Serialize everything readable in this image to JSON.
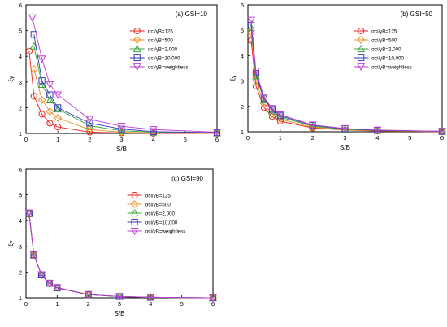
{
  "chart_data": [
    {
      "type": "line",
      "panel_label": "(a) GSI=10",
      "xlabel": "S/B",
      "ylabel": "ξγ",
      "xlim": [
        0,
        6
      ],
      "ylim": [
        1,
        6
      ],
      "xticks": [
        0,
        1,
        2,
        3,
        4,
        5,
        6
      ],
      "yticks": [
        1,
        2,
        3,
        4,
        5,
        6
      ],
      "legend_position": "top-right",
      "series": [
        {
          "name": "σci/γB=125",
          "color": "#e8231c",
          "marker": "circle",
          "points": [
            [
              0.1,
              4.2
            ],
            [
              0.25,
              2.45
            ],
            [
              0.5,
              1.75
            ],
            [
              0.75,
              1.4
            ],
            [
              1,
              1.25
            ],
            [
              2,
              1.05
            ],
            [
              3,
              1.02
            ],
            [
              4,
              1.0
            ],
            [
              6,
              1.0
            ]
          ]
        },
        {
          "name": "σci/γB=500",
          "color": "#f0902a",
          "marker": "diamond",
          "points": [
            [
              0.25,
              3.5
            ],
            [
              0.5,
              2.3
            ],
            [
              0.75,
              1.85
            ],
            [
              1,
              1.6
            ],
            [
              2,
              1.15
            ],
            [
              3,
              1.05
            ],
            [
              4,
              1.02
            ],
            [
              6,
              1.0
            ]
          ]
        },
        {
          "name": "σci/γB=2,000",
          "color": "#3aa63a",
          "marker": "triangle",
          "points": [
            [
              0.25,
              4.4
            ],
            [
              0.5,
              2.9
            ],
            [
              0.75,
              2.3
            ],
            [
              1,
              1.95
            ],
            [
              2,
              1.3
            ],
            [
              3,
              1.1
            ],
            [
              4,
              1.05
            ],
            [
              6,
              1.02
            ]
          ]
        },
        {
          "name": "σci/γB=10,000",
          "color": "#3a3ab8",
          "marker": "square",
          "points": [
            [
              0.25,
              4.85
            ],
            [
              0.5,
              3.05
            ],
            [
              0.75,
              2.5
            ],
            [
              1,
              2.0
            ],
            [
              2,
              1.4
            ],
            [
              3,
              1.17
            ],
            [
              4,
              1.07
            ],
            [
              6,
              1.03
            ]
          ]
        },
        {
          "name": "σci/γB=weightless",
          "color": "#c040d0",
          "marker": "triangle-down",
          "points": [
            [
              0.2,
              5.5
            ],
            [
              0.5,
              3.9
            ],
            [
              0.75,
              2.9
            ],
            [
              1,
              2.5
            ],
            [
              2,
              1.55
            ],
            [
              3,
              1.28
            ],
            [
              4,
              1.15
            ],
            [
              6,
              1.05
            ]
          ]
        }
      ]
    },
    {
      "type": "line",
      "panel_label": "(b) GSI=50",
      "xlabel": "S/B",
      "ylabel": "ξγ",
      "xlim": [
        0,
        6
      ],
      "ylim": [
        1,
        6
      ],
      "xticks": [
        0,
        1,
        2,
        3,
        4,
        5,
        6
      ],
      "yticks": [
        1,
        2,
        3,
        4,
        5,
        6
      ],
      "legend_position": "top-right",
      "series": [
        {
          "name": "σci/γB=125",
          "color": "#e8231c",
          "marker": "circle",
          "points": [
            [
              0.1,
              4.6
            ],
            [
              0.25,
              2.8
            ],
            [
              0.5,
              1.95
            ],
            [
              0.75,
              1.6
            ],
            [
              1,
              1.42
            ],
            [
              2,
              1.15
            ],
            [
              3,
              1.07
            ],
            [
              4,
              1.03
            ],
            [
              6,
              1.0
            ]
          ]
        },
        {
          "name": "σci/γB=500",
          "color": "#f0902a",
          "marker": "diamond",
          "points": [
            [
              0.1,
              4.9
            ],
            [
              0.25,
              3.0
            ],
            [
              0.5,
              2.1
            ],
            [
              0.75,
              1.7
            ],
            [
              1,
              1.5
            ],
            [
              2,
              1.18
            ],
            [
              3,
              1.08
            ],
            [
              4,
              1.04
            ],
            [
              6,
              1.01
            ]
          ]
        },
        {
          "name": "σci/γB=2,000",
          "color": "#3aa63a",
          "marker": "triangle",
          "points": [
            [
              0.1,
              5.1
            ],
            [
              0.25,
              3.2
            ],
            [
              0.5,
              2.25
            ],
            [
              0.75,
              1.82
            ],
            [
              1,
              1.58
            ],
            [
              2,
              1.22
            ],
            [
              3,
              1.1
            ],
            [
              4,
              1.05
            ],
            [
              6,
              1.01
            ]
          ]
        },
        {
          "name": "σci/γB=10,000",
          "color": "#3a3ab8",
          "marker": "square",
          "points": [
            [
              0.1,
              5.2
            ],
            [
              0.25,
              3.3
            ],
            [
              0.5,
              2.3
            ],
            [
              0.75,
              1.88
            ],
            [
              1,
              1.63
            ],
            [
              2,
              1.25
            ],
            [
              3,
              1.12
            ],
            [
              4,
              1.06
            ],
            [
              6,
              1.02
            ]
          ]
        },
        {
          "name": "σci/γB=weightless",
          "color": "#c040d0",
          "marker": "triangle-down",
          "points": [
            [
              0.1,
              5.4
            ],
            [
              0.25,
              3.4
            ],
            [
              0.5,
              2.35
            ],
            [
              0.75,
              1.92
            ],
            [
              1,
              1.67
            ],
            [
              2,
              1.27
            ],
            [
              3,
              1.13
            ],
            [
              4,
              1.07
            ],
            [
              6,
              1.02
            ]
          ]
        }
      ]
    },
    {
      "type": "line",
      "panel_label": "(c) GSI=90",
      "xlabel": "S/B",
      "ylabel": "ξγ",
      "xlim": [
        0,
        6
      ],
      "ylim": [
        1,
        6
      ],
      "xticks": [
        0,
        1,
        2,
        3,
        4,
        5,
        6
      ],
      "yticks": [
        1,
        2,
        3,
        4,
        5,
        6
      ],
      "legend_position": "top-right",
      "series": [
        {
          "name": "σci/γB=125",
          "color": "#e8231c",
          "marker": "circle",
          "points": [
            [
              0.1,
              4.25
            ],
            [
              0.25,
              2.65
            ],
            [
              0.5,
              1.88
            ],
            [
              0.75,
              1.55
            ],
            [
              1,
              1.38
            ],
            [
              2,
              1.12
            ],
            [
              3,
              1.05
            ],
            [
              4,
              1.02
            ],
            [
              6,
              1.0
            ]
          ]
        },
        {
          "name": "σci/γB=500",
          "color": "#f0902a",
          "marker": "diamond",
          "points": [
            [
              0.1,
              4.25
            ],
            [
              0.25,
              2.65
            ],
            [
              0.5,
              1.88
            ],
            [
              0.75,
              1.55
            ],
            [
              1,
              1.38
            ],
            [
              2,
              1.12
            ],
            [
              3,
              1.05
            ],
            [
              4,
              1.02
            ],
            [
              6,
              1.0
            ]
          ]
        },
        {
          "name": "σci/γB=2,000",
          "color": "#3aa63a",
          "marker": "triangle",
          "points": [
            [
              0.1,
              4.27
            ],
            [
              0.25,
              2.66
            ],
            [
              0.5,
              1.89
            ],
            [
              0.75,
              1.56
            ],
            [
              1,
              1.39
            ],
            [
              2,
              1.12
            ],
            [
              3,
              1.05
            ],
            [
              4,
              1.02
            ],
            [
              6,
              1.0
            ]
          ]
        },
        {
          "name": "σci/γB=10,000",
          "color": "#3a3ab8",
          "marker": "square",
          "points": [
            [
              0.1,
              4.28
            ],
            [
              0.25,
              2.67
            ],
            [
              0.5,
              1.89
            ],
            [
              0.75,
              1.56
            ],
            [
              1,
              1.39
            ],
            [
              2,
              1.12
            ],
            [
              3,
              1.05
            ],
            [
              4,
              1.02
            ],
            [
              6,
              1.0
            ]
          ]
        },
        {
          "name": "σci/γB=weightless",
          "color": "#c040d0",
          "marker": "triangle-down",
          "points": [
            [
              0.1,
              4.3
            ],
            [
              0.25,
              2.68
            ],
            [
              0.5,
              1.9
            ],
            [
              0.75,
              1.57
            ],
            [
              1,
              1.4
            ],
            [
              2,
              1.13
            ],
            [
              3,
              1.05
            ],
            [
              4,
              1.02
            ],
            [
              6,
              1.0
            ]
          ]
        }
      ]
    }
  ]
}
